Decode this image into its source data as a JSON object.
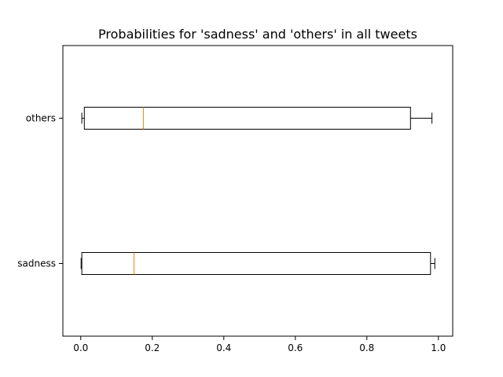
{
  "chart_data": {
    "type": "boxplot",
    "orientation": "horizontal",
    "title": "Probabilities for 'sadness' and 'others' in all tweets",
    "xlabel": "",
    "ylabel": "",
    "xlim": [
      -0.05,
      1.04
    ],
    "xticks": [
      0.0,
      0.2,
      0.4,
      0.6,
      0.8,
      1.0
    ],
    "xtick_labels": [
      "0.0",
      "0.2",
      "0.4",
      "0.6",
      "0.8",
      "1.0"
    ],
    "categories": [
      "sadness",
      "others"
    ],
    "boxes": [
      {
        "label": "sadness",
        "whisker_low": 0.001,
        "q1": 0.003,
        "median": 0.149,
        "q3": 0.978,
        "whisker_high": 0.99
      },
      {
        "label": "others",
        "whisker_low": 0.003,
        "q1": 0.01,
        "median": 0.175,
        "q3": 0.922,
        "whisker_high": 0.982
      }
    ],
    "colors": {
      "box": "#000000",
      "median": "#ff7f0e"
    },
    "grid": false
  }
}
